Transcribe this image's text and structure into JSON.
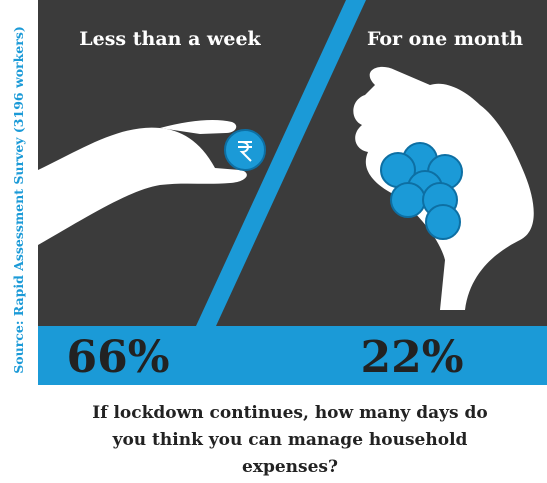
{
  "source": "Source: Rapid Assessment Survey (3196 workers)",
  "panels": [
    {
      "label": "Less than a week",
      "value": "66%"
    },
    {
      "label": "For one month",
      "value": "22%"
    }
  ],
  "question": [
    "If lockdown continues, how many days do",
    "you think you can manage household",
    "expenses?"
  ]
}
